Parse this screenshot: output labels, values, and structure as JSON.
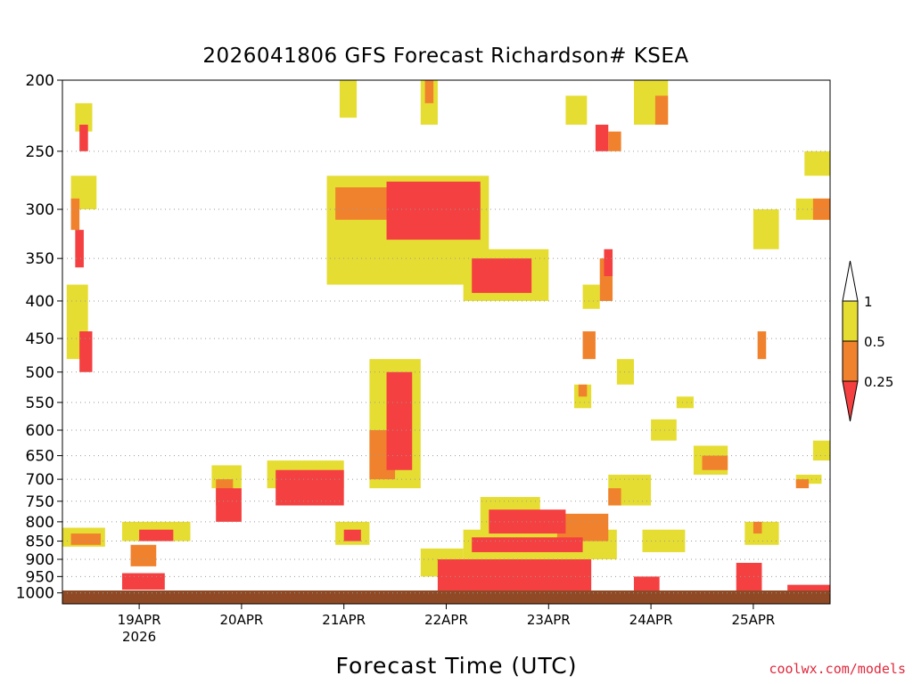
{
  "chart_data": {
    "type": "heatmap",
    "title": "2026041806 GFS Forecast Richardson# KSEA",
    "xlabel": "Forecast Time (UTC)",
    "ylabel": "",
    "credit": "coolwx.com/models",
    "y_axis": {
      "scale": "log-pressure",
      "range_hpa": [
        1035,
        200
      ],
      "tick_labels": [
        "200",
        "250",
        "300",
        "350",
        "400",
        "450",
        "500",
        "550",
        "600",
        "650",
        "700",
        "750",
        "800",
        "850",
        "900",
        "950",
        "1000"
      ],
      "grid": "dotted"
    },
    "x_axis": {
      "range_hours_from_init": [
        0,
        180
      ],
      "tick_labels": [
        "19APR",
        "20APR",
        "21APR",
        "22APR",
        "23APR",
        "24APR",
        "25APR"
      ],
      "tick_hours": [
        18,
        42,
        66,
        90,
        114,
        138,
        162
      ],
      "sub_label": "2026"
    },
    "colorbar": {
      "labels": [
        "1",
        "0.5",
        "0.25"
      ],
      "levels": [
        0.25,
        0.5,
        1
      ],
      "colors": {
        "below_0.25": "#f44040",
        "0.25_to_0.5": "#f0822d",
        "0.5_to_1": "#e6dd32",
        "above_1": "#ffffff"
      }
    },
    "ground_color": "#8f4a25",
    "regions": [
      {
        "level": "0.5_to_1",
        "t": [
          2,
          8
        ],
        "p": [
          270,
          300
        ]
      },
      {
        "level": "0.5_to_1",
        "t": [
          3,
          7
        ],
        "p": [
          215,
          235
        ]
      },
      {
        "level": "below_0.25",
        "t": [
          4,
          6
        ],
        "p": [
          230,
          250
        ]
      },
      {
        "level": "0.25_to_0.5",
        "t": [
          2,
          4
        ],
        "p": [
          290,
          320
        ]
      },
      {
        "level": "below_0.25",
        "t": [
          3,
          5
        ],
        "p": [
          320,
          360
        ]
      },
      {
        "level": "0.5_to_1",
        "t": [
          1,
          6
        ],
        "p": [
          380,
          480
        ]
      },
      {
        "level": "below_0.25",
        "t": [
          4,
          7
        ],
        "p": [
          440,
          500
        ]
      },
      {
        "level": "0.5_to_1",
        "t": [
          0,
          10
        ],
        "p": [
          815,
          865
        ]
      },
      {
        "level": "0.25_to_0.5",
        "t": [
          2,
          9
        ],
        "p": [
          830,
          860
        ]
      },
      {
        "level": "0.5_to_1",
        "t": [
          14,
          30
        ],
        "p": [
          800,
          850
        ]
      },
      {
        "level": "below_0.25",
        "t": [
          18,
          26
        ],
        "p": [
          820,
          850
        ]
      },
      {
        "level": "0.25_to_0.5",
        "t": [
          16,
          22
        ],
        "p": [
          860,
          920
        ]
      },
      {
        "level": "below_0.25",
        "t": [
          14,
          24
        ],
        "p": [
          940,
          990
        ]
      },
      {
        "level": "0.5_to_1",
        "t": [
          35,
          42
        ],
        "p": [
          670,
          720
        ]
      },
      {
        "level": "0.25_to_0.5",
        "t": [
          36,
          40
        ],
        "p": [
          700,
          760
        ]
      },
      {
        "level": "below_0.25",
        "t": [
          36,
          42
        ],
        "p": [
          720,
          800
        ]
      },
      {
        "level": "0.5_to_1",
        "t": [
          48,
          66
        ],
        "p": [
          660,
          720
        ]
      },
      {
        "level": "below_0.25",
        "t": [
          50,
          66
        ],
        "p": [
          680,
          760
        ]
      },
      {
        "level": "0.5_to_1",
        "t": [
          64,
          72
        ],
        "p": [
          800,
          860
        ]
      },
      {
        "level": "below_0.25",
        "t": [
          66,
          70
        ],
        "p": [
          820,
          850
        ]
      },
      {
        "level": "0.5_to_1",
        "t": [
          72,
          84
        ],
        "p": [
          480,
          720
        ]
      },
      {
        "level": "below_0.25",
        "t": [
          76,
          82
        ],
        "p": [
          500,
          680
        ]
      },
      {
        "level": "0.25_to_0.5",
        "t": [
          72,
          78
        ],
        "p": [
          600,
          700
        ]
      },
      {
        "level": "0.5_to_1",
        "t": [
          62,
          100
        ],
        "p": [
          270,
          380
        ]
      },
      {
        "level": "0.25_to_0.5",
        "t": [
          64,
          98
        ],
        "p": [
          280,
          310
        ]
      },
      {
        "level": "below_0.25",
        "t": [
          76,
          98
        ],
        "p": [
          275,
          330
        ]
      },
      {
        "level": "0.5_to_1",
        "t": [
          94,
          114
        ],
        "p": [
          340,
          400
        ]
      },
      {
        "level": "below_0.25",
        "t": [
          96,
          110
        ],
        "p": [
          350,
          390
        ]
      },
      {
        "level": "0.5_to_1",
        "t": [
          84,
          88
        ],
        "p": [
          200,
          230
        ]
      },
      {
        "level": "0.25_to_0.5",
        "t": [
          85,
          87
        ],
        "p": [
          200,
          215
        ]
      },
      {
        "level": "0.5_to_1",
        "t": [
          65,
          69
        ],
        "p": [
          200,
          225
        ]
      },
      {
        "level": "0.5_to_1",
        "t": [
          118,
          123
        ],
        "p": [
          210,
          230
        ]
      },
      {
        "level": "0.5_to_1",
        "t": [
          134,
          142
        ],
        "p": [
          200,
          230
        ]
      },
      {
        "level": "0.25_to_0.5",
        "t": [
          139,
          142
        ],
        "p": [
          210,
          230
        ]
      },
      {
        "level": "below_0.25",
        "t": [
          125,
          128
        ],
        "p": [
          230,
          250
        ]
      },
      {
        "level": "0.25_to_0.5",
        "t": [
          128,
          131
        ],
        "p": [
          235,
          250
        ]
      },
      {
        "level": "0.25_to_0.5",
        "t": [
          126,
          129
        ],
        "p": [
          350,
          400
        ]
      },
      {
        "level": "below_0.25",
        "t": [
          127,
          129
        ],
        "p": [
          340,
          370
        ]
      },
      {
        "level": "0.5_to_1",
        "t": [
          98,
          112
        ],
        "p": [
          740,
          830
        ]
      },
      {
        "level": "below_0.25",
        "t": [
          100,
          118
        ],
        "p": [
          770,
          830
        ]
      },
      {
        "level": "0.25_to_0.5",
        "t": [
          116,
          128
        ],
        "p": [
          780,
          850
        ]
      },
      {
        "level": "0.5_to_1",
        "t": [
          94,
          130
        ],
        "p": [
          820,
          900
        ]
      },
      {
        "level": "below_0.25",
        "t": [
          96,
          122
        ],
        "p": [
          840,
          880
        ]
      },
      {
        "level": "below_0.25",
        "t": [
          88,
          124
        ],
        "p": [
          900,
          1000
        ]
      },
      {
        "level": "0.5_to_1",
        "t": [
          84,
          94
        ],
        "p": [
          870,
          950
        ]
      },
      {
        "level": "0.5_to_1",
        "t": [
          128,
          138
        ],
        "p": [
          690,
          760
        ]
      },
      {
        "level": "0.25_to_0.5",
        "t": [
          128,
          131
        ],
        "p": [
          720,
          760
        ]
      },
      {
        "level": "0.5_to_1",
        "t": [
          148,
          156
        ],
        "p": [
          630,
          690
        ]
      },
      {
        "level": "0.25_to_0.5",
        "t": [
          150,
          156
        ],
        "p": [
          650,
          680
        ]
      },
      {
        "level": "0.5_to_1",
        "t": [
          136,
          146
        ],
        "p": [
          820,
          880
        ]
      },
      {
        "level": "below_0.25",
        "t": [
          134,
          140
        ],
        "p": [
          950,
          1000
        ]
      },
      {
        "level": "below_0.25",
        "t": [
          158,
          164
        ],
        "p": [
          910,
          1000
        ]
      },
      {
        "level": "0.5_to_1",
        "t": [
          160,
          168
        ],
        "p": [
          800,
          860
        ]
      },
      {
        "level": "0.25_to_0.5",
        "t": [
          162,
          164
        ],
        "p": [
          800,
          830
        ]
      },
      {
        "level": "0.5_to_1",
        "t": [
          162,
          168
        ],
        "p": [
          300,
          340
        ]
      },
      {
        "level": "0.25_to_0.5",
        "t": [
          163,
          165
        ],
        "p": [
          440,
          480
        ]
      },
      {
        "level": "0.5_to_1",
        "t": [
          174,
          180
        ],
        "p": [
          250,
          270
        ]
      },
      {
        "level": "0.5_to_1",
        "t": [
          172,
          180
        ],
        "p": [
          290,
          310
        ]
      },
      {
        "level": "0.25_to_0.5",
        "t": [
          176,
          180
        ],
        "p": [
          290,
          310
        ]
      },
      {
        "level": "0.5_to_1",
        "t": [
          176,
          180
        ],
        "p": [
          620,
          660
        ]
      },
      {
        "level": "0.5_to_1",
        "t": [
          172,
          178
        ],
        "p": [
          690,
          710
        ]
      },
      {
        "level": "0.25_to_0.5",
        "t": [
          172,
          175
        ],
        "p": [
          700,
          720
        ]
      },
      {
        "level": "below_0.25",
        "t": [
          170,
          180
        ],
        "p": [
          975,
          1005
        ]
      },
      {
        "level": "0.5_to_1",
        "t": [
          122,
          126
        ],
        "p": [
          380,
          410
        ]
      },
      {
        "level": "0.25_to_0.5",
        "t": [
          122,
          125
        ],
        "p": [
          440,
          480
        ]
      },
      {
        "level": "0.5_to_1",
        "t": [
          120,
          124
        ],
        "p": [
          520,
          560
        ]
      },
      {
        "level": "0.25_to_0.5",
        "t": [
          121,
          123
        ],
        "p": [
          520,
          540
        ]
      },
      {
        "level": "0.5_to_1",
        "t": [
          138,
          144
        ],
        "p": [
          580,
          620
        ]
      },
      {
        "level": "0.5_to_1",
        "t": [
          144,
          148
        ],
        "p": [
          540,
          560
        ]
      },
      {
        "level": "0.5_to_1",
        "t": [
          130,
          134
        ],
        "p": [
          480,
          520
        ]
      }
    ]
  }
}
